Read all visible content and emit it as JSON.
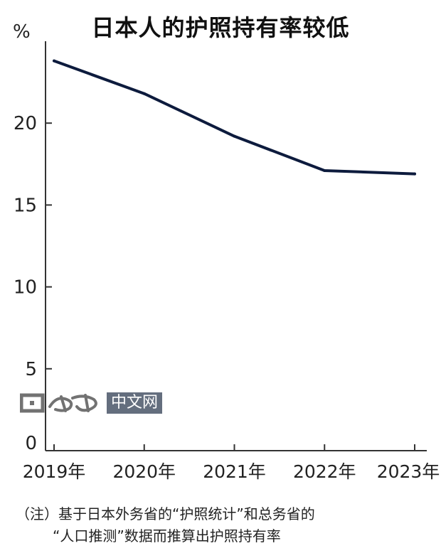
{
  "chart_data": {
    "type": "line",
    "title": "日本人的护照持有率较低",
    "unit": "%",
    "categories": [
      "2019年",
      "2020年",
      "2021年",
      "2022年",
      "2023年"
    ],
    "x": [
      2019,
      2020,
      2021,
      2022,
      2023
    ],
    "series": [
      {
        "values": [
          23.8,
          21.8,
          19.2,
          17.1,
          16.9
        ],
        "color": "#0d1b3d"
      }
    ],
    "yticks": [
      0,
      5,
      10,
      15,
      20
    ],
    "ylim": [
      0,
      25
    ],
    "grid": false,
    "legend": "none",
    "note_line1": "（注）基于日本外务省的“护照统计”和总务省的",
    "note_line2": "“人口推测”数据而推算出护照持有率"
  },
  "watermark": {
    "text": "中文网"
  }
}
